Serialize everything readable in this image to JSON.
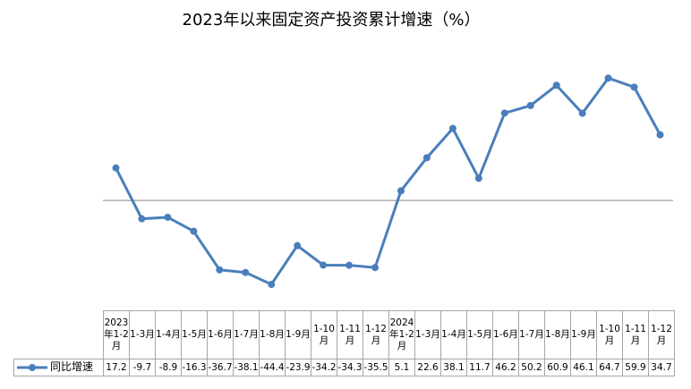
{
  "chart_data": {
    "type": "line",
    "title": "2023年以来固定资产投资累计增速（%）",
    "categories": [
      "2023年1-2月",
      "1-3月",
      "1-4月",
      "1-5月",
      "1-6月",
      "1-7月",
      "1-8月",
      "1-9月",
      "1-10月",
      "1-11月",
      "1-12月",
      "2024年1-2月",
      "1-3月",
      "1-4月",
      "1-5月",
      "1-6月",
      "1-7月",
      "1-8月",
      "1-9月",
      "1-10月",
      "1-11月",
      "1-12月"
    ],
    "series": [
      {
        "name": "同比增速",
        "color": "#4a7ebb",
        "values": [
          17.2,
          -9.7,
          -8.9,
          -16.3,
          -36.7,
          -38.1,
          -44.4,
          -23.9,
          -34.2,
          -34.3,
          -35.5,
          5.1,
          22.6,
          38.1,
          11.7,
          46.2,
          50.2,
          60.9,
          46.1,
          64.7,
          59.9,
          34.7
        ]
      }
    ],
    "ylim": [
      -60,
      80
    ]
  }
}
